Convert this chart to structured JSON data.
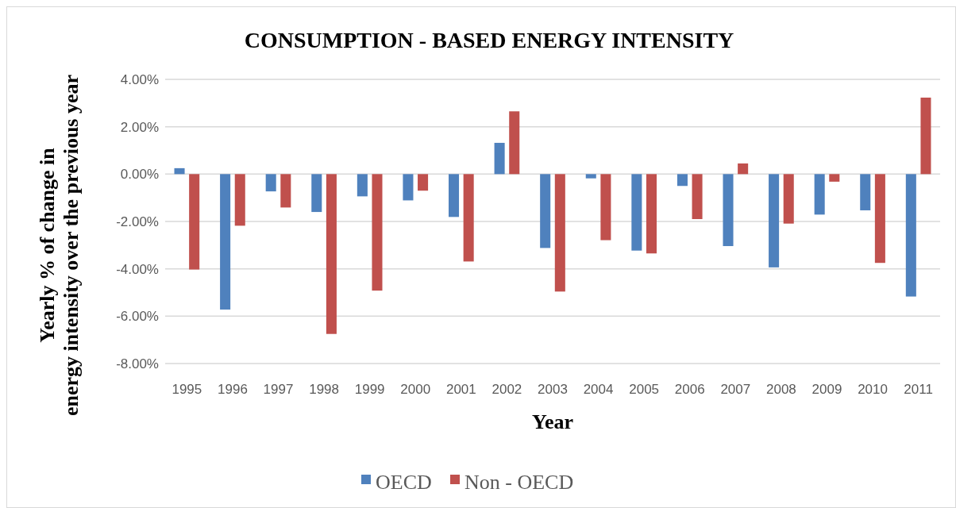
{
  "chart_data": {
    "type": "bar",
    "title": "CONSUMPTION - BASED ENERGY INTENSITY",
    "xlabel": "Year",
    "ylabel": "Yearly % of change in energy intensity over the previous year",
    "categories": [
      "1995",
      "1996",
      "1997",
      "1998",
      "1999",
      "2000",
      "2001",
      "2002",
      "2003",
      "2004",
      "2005",
      "2006",
      "2007",
      "2008",
      "2009",
      "2010",
      "2011"
    ],
    "series": [
      {
        "name": "OECD",
        "color": "#4f81bd",
        "values": [
          0.25,
          -5.72,
          -0.73,
          -1.6,
          -0.94,
          -1.11,
          -1.81,
          1.32,
          -3.12,
          -0.18,
          -3.23,
          -0.5,
          -3.04,
          -3.94,
          -1.71,
          -1.53,
          -5.17
        ]
      },
      {
        "name": "Non - OECD",
        "color": "#c0504d",
        "values": [
          -4.03,
          -2.18,
          -1.41,
          -6.75,
          -4.92,
          -0.7,
          -3.69,
          2.65,
          -4.96,
          -2.79,
          -3.35,
          -1.9,
          0.45,
          -2.09,
          -0.32,
          -3.75,
          3.23
        ]
      }
    ],
    "ylim": [
      -8,
      4
    ],
    "yticks": [
      {
        "value": -8,
        "label": "-8.00%"
      },
      {
        "value": -6,
        "label": "-6.00%"
      },
      {
        "value": -4,
        "label": "-4.00%"
      },
      {
        "value": -2,
        "label": "-2.00%"
      },
      {
        "value": 0,
        "label": "0.00%"
      },
      {
        "value": 2,
        "label": "2.00%"
      },
      {
        "value": 4,
        "label": "4.00%"
      }
    ],
    "grid": "y",
    "legend": "bottom"
  }
}
